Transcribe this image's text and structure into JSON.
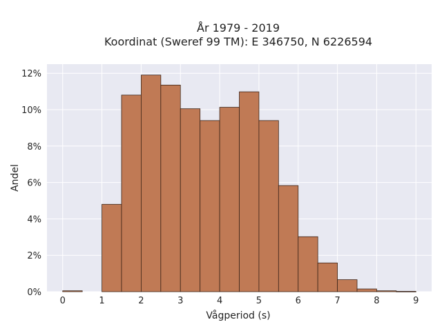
{
  "chart_data": {
    "type": "bar",
    "title_line1": "År 1979 - 2019",
    "title_line2": "Koordinat (Sweref 99 TM): E 346750, N 6226594",
    "xlabel": "Vågperiod (s)",
    "ylabel": "Andel",
    "bin_width": 0.5,
    "bins": [
      {
        "x0": 0.0,
        "value": 0.0005
      },
      {
        "x0": 0.5,
        "value": 0.0
      },
      {
        "x0": 1.0,
        "value": 0.048
      },
      {
        "x0": 1.5,
        "value": 0.108
      },
      {
        "x0": 2.0,
        "value": 0.119
      },
      {
        "x0": 2.5,
        "value": 0.1135
      },
      {
        "x0": 3.0,
        "value": 0.1005
      },
      {
        "x0": 3.5,
        "value": 0.094
      },
      {
        "x0": 4.0,
        "value": 0.1013
      },
      {
        "x0": 4.5,
        "value": 0.1098
      },
      {
        "x0": 5.0,
        "value": 0.094
      },
      {
        "x0": 5.5,
        "value": 0.0583
      },
      {
        "x0": 6.0,
        "value": 0.0302
      },
      {
        "x0": 6.5,
        "value": 0.0158
      },
      {
        "x0": 7.0,
        "value": 0.0066
      },
      {
        "x0": 7.5,
        "value": 0.0015
      },
      {
        "x0": 8.0,
        "value": 0.0005
      },
      {
        "x0": 8.5,
        "value": 0.0002
      }
    ],
    "xlim": [
      -0.4,
      9.4
    ],
    "ylim": [
      0,
      0.125
    ],
    "x_ticks": [
      0,
      1,
      2,
      3,
      4,
      5,
      6,
      7,
      8,
      9
    ],
    "y_ticks": [
      0,
      0.02,
      0.04,
      0.06,
      0.08,
      0.1,
      0.12
    ],
    "y_tick_labels": [
      "0%",
      "2%",
      "4%",
      "6%",
      "8%",
      "10%",
      "12%"
    ],
    "grid": true,
    "colors": {
      "bar_fill": "#c07a55",
      "bar_stroke": "#3a2418",
      "plot_background": "#e8e9f2",
      "grid": "#ffffff"
    }
  }
}
